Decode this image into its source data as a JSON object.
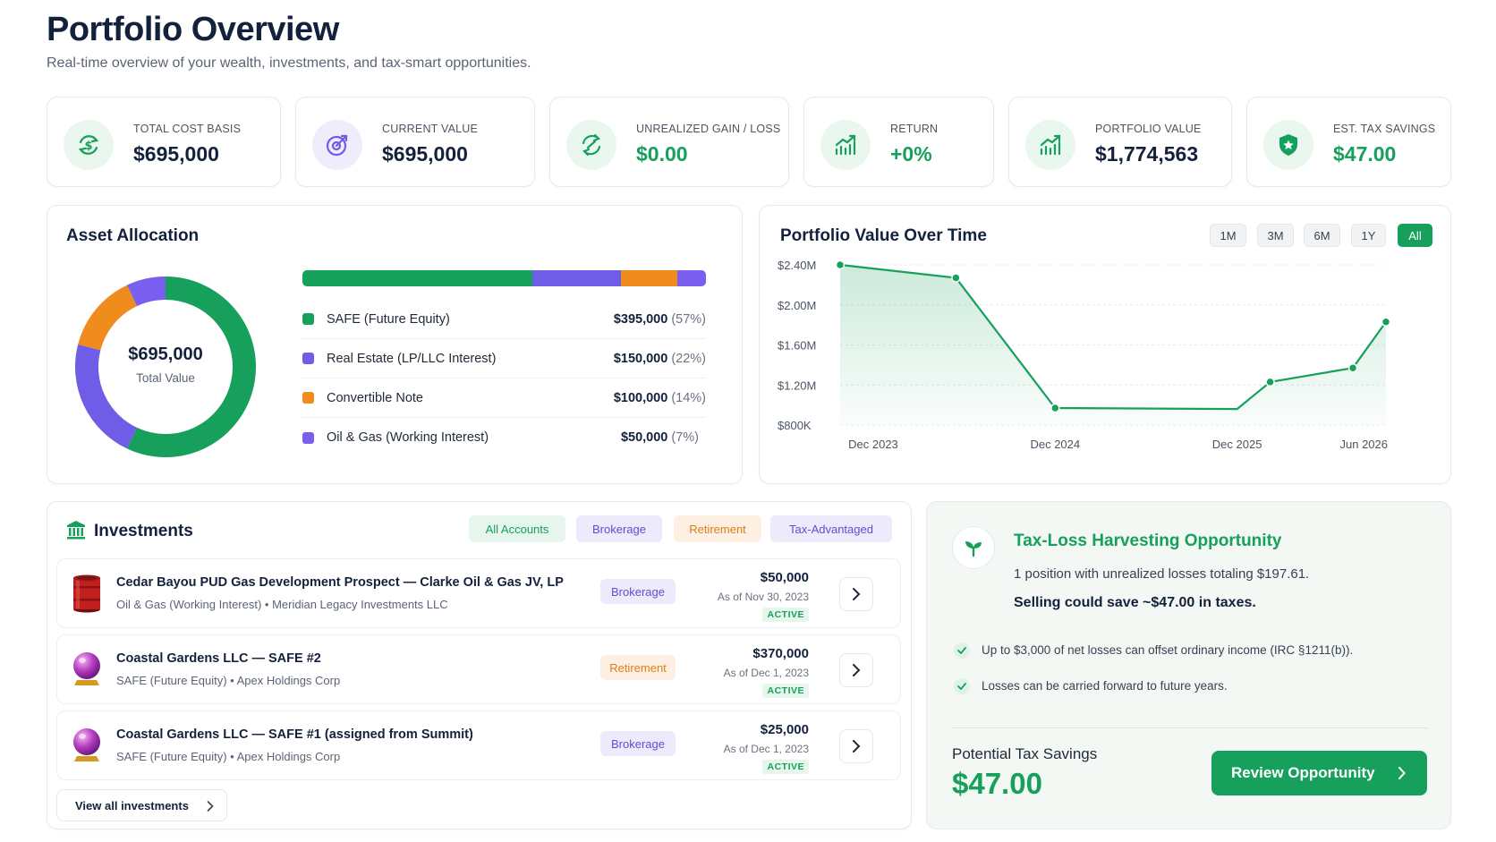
{
  "header": {
    "title": "Portfolio Overview",
    "subtitle": "Real-time overview of your wealth, investments, and tax-smart opportunities."
  },
  "stats": [
    {
      "label": "TOTAL COST BASIS",
      "value": "$695,000",
      "icon": "dollar-refresh-icon"
    },
    {
      "label": "CURRENT VALUE",
      "value": "$695,000",
      "icon": "target-arrow-icon"
    },
    {
      "label": "UNREALIZED GAIN / LOSS",
      "value": "$0.00",
      "icon": "exchange-icon"
    },
    {
      "label": "RETURN",
      "value": "+0%",
      "icon": "trend-up-chart-icon"
    },
    {
      "label": "PORTFOLIO VALUE",
      "value": "$1,774,563",
      "icon": "trend-up-chart-icon"
    },
    {
      "label": "EST. TAX SAVINGS",
      "value": "$47.00",
      "icon": "shield-star-icon"
    }
  ],
  "allocation": {
    "title": "Asset Allocation",
    "total_value": "$695,000",
    "total_label": "Total Value",
    "items": [
      {
        "label": "SAFE (Future Equity)",
        "value": "$395,000",
        "pct": "(57%)",
        "color": "#16a05b",
        "share": 57
      },
      {
        "label": "Real Estate (LP/LLC Interest)",
        "value": "$150,000",
        "pct": "(22%)",
        "color": "#6f5de8",
        "share": 22
      },
      {
        "label": "Convertible Note",
        "value": "$100,000",
        "pct": "(14%)",
        "color": "#f08c1e",
        "share": 14
      },
      {
        "label": "Oil & Gas (Working Interest)",
        "value": "$50,000",
        "pct": "(7%)",
        "color": "#7a5ef0",
        "share": 7
      }
    ]
  },
  "chart_data": {
    "type": "area",
    "title": "Portfolio Value Over Time",
    "ylabel": "",
    "xlabel": "",
    "ylim": [
      800000,
      2400000
    ],
    "yticks": [
      "$2.40M",
      "$2.00M",
      "$1.60M",
      "$1.20M",
      "$800K"
    ],
    "xticks": [
      "Dec 2023",
      "Dec 2024",
      "Dec 2025",
      "Jun 2026"
    ],
    "points": [
      {
        "x": "2023-11",
        "y": 2400000
      },
      {
        "x": "2024-06",
        "y": 2270000
      },
      {
        "x": "2024-12",
        "y": 970000
      },
      {
        "x": "2025-11",
        "y": 960000
      },
      {
        "x": "2026-01",
        "y": 1230000
      },
      {
        "x": "2026-06",
        "y": 1370000
      },
      {
        "x": "2026-08",
        "y": 1830000
      }
    ],
    "grid": true,
    "color": "#16a05b",
    "ranges": [
      "1M",
      "3M",
      "6M",
      "1Y",
      "All"
    ],
    "active_range": "All"
  },
  "investments": {
    "title": "Investments",
    "filters": [
      "All Accounts",
      "Brokerage",
      "Retirement",
      "Tax-Advantaged"
    ],
    "rows": [
      {
        "title": "Cedar Bayou PUD Gas Development Prospect — Clarke Oil & Gas JV, LP",
        "subtitle": "Oil & Gas (Working Interest) • Meridian Legacy Investments LLC",
        "tag": "Brokerage",
        "amount": "$50,000",
        "date": "As of Nov 30, 2023",
        "status": "ACTIVE",
        "icon": "oil-barrel-icon"
      },
      {
        "title": "Coastal Gardens LLC — SAFE #2",
        "subtitle": "SAFE (Future Equity) • Apex Holdings Corp",
        "tag": "Retirement",
        "amount": "$370,000",
        "date": "As of Dec 1, 2023",
        "status": "ACTIVE",
        "icon": "crystal-ball-icon"
      },
      {
        "title": "Coastal Gardens LLC — SAFE #1 (assigned from Summit)",
        "subtitle": "SAFE (Future Equity) • Apex Holdings Corp",
        "tag": "Brokerage",
        "amount": "$25,000",
        "date": "As of Dec 1, 2023",
        "status": "ACTIVE",
        "icon": "crystal-ball-icon"
      }
    ],
    "view_all": "View all investments"
  },
  "tax": {
    "title": "Tax-Loss Harvesting Opportunity",
    "line1": "1 position with unrealized losses totaling $197.61.",
    "line2": "Selling could save ~$47.00 in taxes.",
    "bullets": [
      "Up to $3,000 of net losses can offset ordinary income (IRC §1211(b)).",
      "Losses can be carried forward to future years."
    ],
    "savings_label": "Potential Tax Savings",
    "savings_value": "$47.00",
    "cta": "Review Opportunity"
  }
}
